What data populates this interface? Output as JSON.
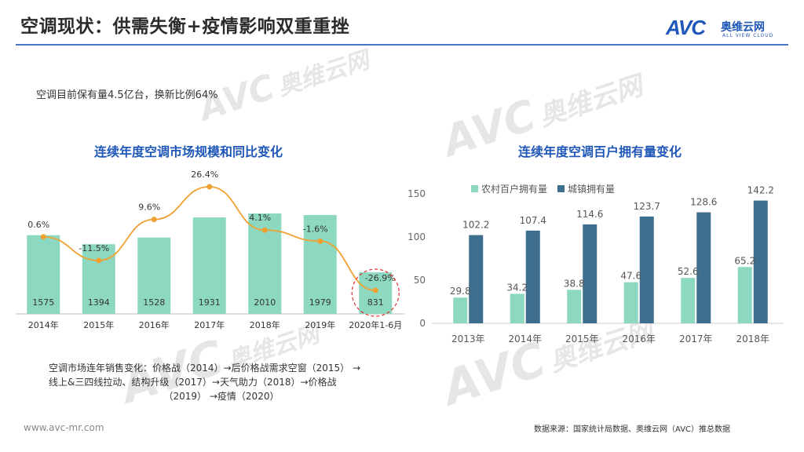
{
  "page": {
    "title": "空调现状：供需失衡+疫情影响双重重挫",
    "stat_text": "空调目前保有量4.5亿台，换新比例64%",
    "note_lines": [
      "空调市场连年销售变化：价格战（2014）→后价格战需求空窗（2015）  →",
      "线上&三四线拉动、结构升级（2017）→天气助力（2018）→价格战",
      "（2019） →疫情（2020）"
    ],
    "website": "www.avc-mr.com",
    "source": "数据来源：国家统计局数据、奥维云网（AVC）推总数据"
  },
  "logo": {
    "mark": "AVC",
    "cn": "奥维云网",
    "en": "ALL VIEW CLOUD"
  },
  "watermark": {
    "cn": "奥维云网",
    "en": "ALL VIEW CLOUD",
    "mark": "AVC"
  },
  "colors": {
    "accent": "#1f57b8",
    "bar_light": "#8dd8c0",
    "bar_dark": "#3e6e8e",
    "line": "#f0a030",
    "highlight": "#e03030"
  },
  "chart_data": [
    {
      "type": "bar",
      "title": "连续年度空调市场规模和同比变化",
      "categories": [
        "2014年",
        "2015年",
        "2016年",
        "2017年",
        "2018年",
        "2019年",
        "2020年1-6月"
      ],
      "series": [
        {
          "values": [
            1575,
            1394,
            1528,
            1931,
            2010,
            1979,
            831
          ],
          "labels": [
            "1575",
            "1394",
            "1528",
            "1931",
            "2010",
            "1979",
            "831"
          ]
        },
        {
          "type": "line",
          "values": [
            0.6,
            -11.5,
            9.6,
            26.4,
            4.1,
            -1.6,
            -26.9
          ],
          "labels": [
            "0.6%",
            "-11.5%",
            "9.6%",
            "26.4%",
            "4.1%",
            "-1.6%",
            "-26.9%"
          ]
        }
      ],
      "highlight": "2020年1-6月"
    },
    {
      "type": "bar",
      "title": "连续年度空调百户拥有量变化",
      "categories": [
        "2013年",
        "2014年",
        "2015年",
        "2016年",
        "2017年",
        "2018年"
      ],
      "series": [
        {
          "name": "农村百户拥有量",
          "values": [
            29.8,
            34.2,
            38.8,
            47.6,
            52.6,
            65.2
          ]
        },
        {
          "name": "城镇拥有量",
          "values": [
            102.2,
            107.4,
            114.6,
            123.7,
            128.6,
            142.2
          ]
        }
      ],
      "ylim": [
        0,
        150
      ],
      "yticks": [
        0,
        50,
        100,
        150
      ],
      "legend": "top"
    }
  ]
}
